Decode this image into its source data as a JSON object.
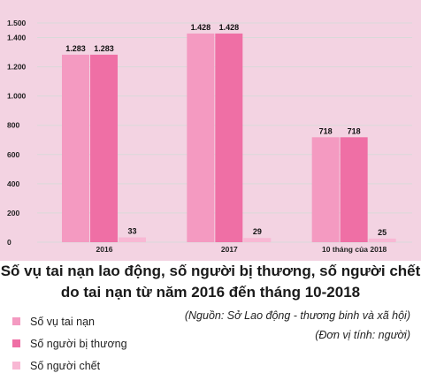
{
  "chart_data": {
    "type": "bar",
    "categories": [
      "2016",
      "2017",
      "10 tháng của 2018"
    ],
    "series": [
      {
        "name": "Số vụ tai nạn",
        "color": "#f49ac1",
        "values": [
          1283,
          1428,
          718
        ],
        "labels": [
          "1.283",
          "1.428",
          "718"
        ]
      },
      {
        "name": "Số người bị thương",
        "color": "#ef6fa5",
        "values": [
          1283,
          1428,
          718
        ],
        "labels": [
          "1.283",
          "1.428",
          "718"
        ]
      },
      {
        "name": "Số người chết",
        "color": "#f8b8d4",
        "values": [
          33,
          29,
          25
        ],
        "labels": [
          "33",
          "29",
          "25"
        ]
      }
    ],
    "ylim": [
      0,
      1500
    ],
    "yticks": [
      0,
      200,
      400,
      600,
      800,
      1000,
      1200,
      1400,
      1500
    ],
    "ytick_labels": [
      "0",
      "200",
      "400",
      "600",
      "800",
      "1.000",
      "1.200",
      "1.400",
      "1.500"
    ],
    "grid": true,
    "title_lines": [
      "Số vụ tai nạn lao động, số người bị thương, số người chết",
      "do tai nạn từ năm 2016 đến tháng 10-2018"
    ],
    "source_note": "(Nguồn: Sở Lao động - thương binh và xã hội)",
    "unit_note": "(Đơn vị tính: người)",
    "gridline_color": "#d9d9d9",
    "background_color": "#f3d3e2"
  }
}
